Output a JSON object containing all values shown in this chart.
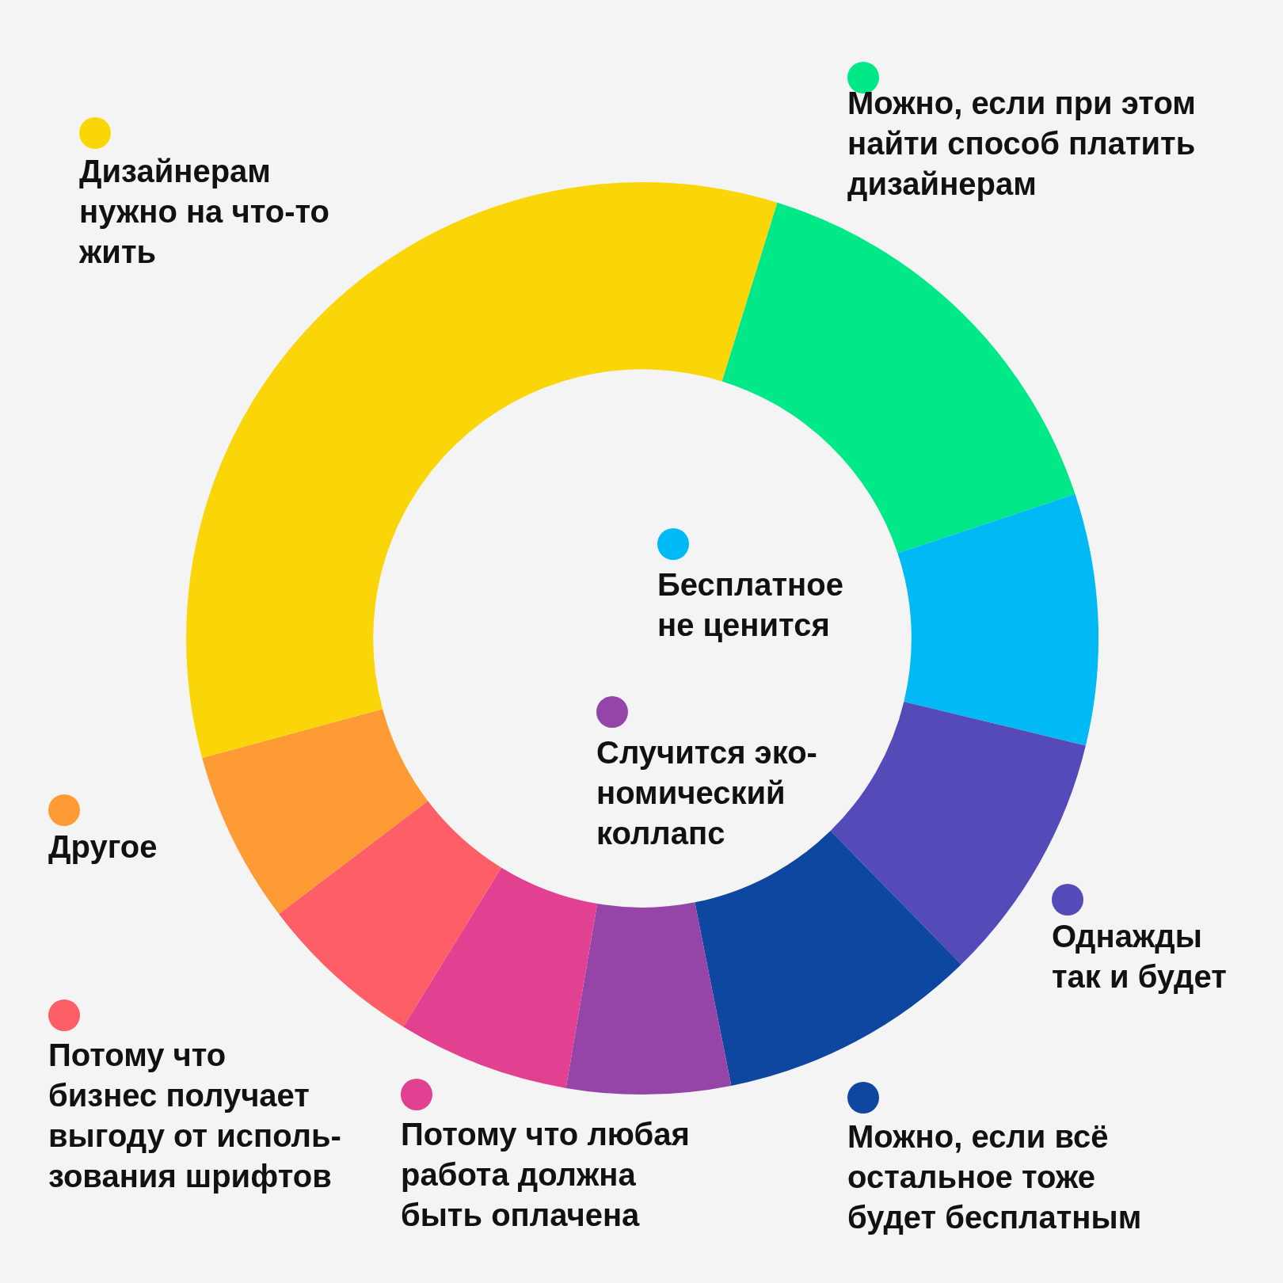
{
  "chart_data": {
    "type": "donut",
    "categories": [
      "Можно, если при этом\nнайти способ платить\nдизайнерам",
      "Бесплатное\nне ценится",
      "Однажды\nтак и будет",
      "Можно, если всё\nостальное тоже\nбудет бесплатным",
      "Случится эко-\nномический\nколлапс",
      "Потому что любая\nработа должна\nбыть оплачена",
      "Потому что\nбизнес получает\nвыгоду от исполь-\nзования шрифтов",
      "Другое",
      "Дизайнерам\nнужно на что-то\nжить"
    ],
    "values": [
      15.1,
      8.9,
      8.9,
      9.2,
      5.8,
      6.1,
      5.9,
      6.1,
      34.0
    ],
    "legend": "left",
    "colors": [
      "#00e887",
      "#00b9f5",
      "#544bb9",
      "#0e479f",
      "#9544a7",
      "#e14190",
      "#fe5f66",
      "#fe9b35",
      "#fad609"
    ]
  }
}
